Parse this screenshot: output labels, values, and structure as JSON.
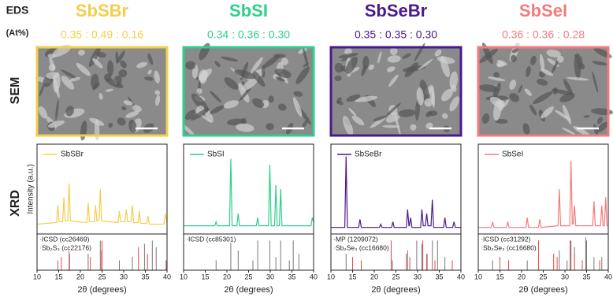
{
  "row_labels": {
    "eds": "EDS",
    "eds_unit": "(At%)",
    "sem": "SEM",
    "xrd": "XRD"
  },
  "chart_data": [
    {
      "type": "line",
      "title": "SbSBr",
      "subtitle": "0.35 : 0.49 : 0.16",
      "color": "#f2cf4b",
      "xlabel": "2θ (degrees)",
      "ylabel": "Intensity (a.u.)",
      "xlim": [
        10,
        40
      ],
      "xticks": [
        10,
        15,
        20,
        25,
        30,
        35,
        40
      ],
      "ylim": [
        0,
        1.1
      ],
      "x": [
        10,
        14.5,
        14.8,
        15.1,
        15.9,
        16.2,
        16.5,
        17.1,
        17.4,
        17.7,
        21.5,
        21.8,
        22.1,
        23.2,
        23.5,
        23.8,
        24.3,
        24.6,
        24.9,
        28.7,
        29,
        29.3,
        30.3,
        30.6,
        30.9,
        31.7,
        32,
        32.3,
        33.3,
        33.6,
        33.9,
        35.3,
        35.6,
        35.9,
        39.3,
        39.6,
        40
      ],
      "series": [
        {
          "name": "SbSBr",
          "color": "#f2cf4b",
          "values": [
            0.12,
            0.14,
            0.35,
            0.15,
            0.15,
            0.45,
            0.16,
            0.16,
            0.62,
            0.16,
            0.14,
            0.38,
            0.15,
            0.15,
            0.35,
            0.16,
            0.17,
            0.55,
            0.16,
            0.14,
            0.28,
            0.15,
            0.15,
            0.3,
            0.15,
            0.15,
            0.35,
            0.14,
            0.14,
            0.28,
            0.13,
            0.13,
            0.22,
            0.12,
            0.12,
            0.25,
            0.14
          ]
        }
      ],
      "references": [
        {
          "name": "ICSD (cc26469)",
          "color": "#777777",
          "x": [
            14.8,
            17.4,
            21.8,
            24.6,
            29,
            32,
            34.8,
            36.6,
            37.5
          ],
          "values": [
            0.3,
            0.6,
            0.5,
            0.9,
            0.3,
            0.4,
            0.8,
            0.9,
            0.7
          ]
        },
        {
          "name": "Sb₂S₃ (cc22176)",
          "color": "#e8454a",
          "x": [
            15.6,
            17.5,
            22.3,
            24.9,
            25,
            33.4,
            35.5,
            39.8
          ],
          "values": [
            0.4,
            0.5,
            0.4,
            0.6,
            0.9,
            0.7,
            0.5,
            0.3
          ]
        }
      ],
      "ref_ylim": [
        0,
        1.1
      ]
    },
    {
      "type": "line",
      "title": "SbSI",
      "subtitle": "0.34 : 0.36 : 0.30",
      "color": "#2ecf8c",
      "xlabel": "2θ (degrees)",
      "xlim": [
        10,
        40
      ],
      "xticks": [
        10,
        15,
        20,
        25,
        30,
        35,
        40
      ],
      "ylim": [
        0,
        1.1
      ],
      "x": [
        10,
        17.2,
        17.5,
        17.8,
        20.6,
        20.9,
        21.2,
        22.3,
        22.6,
        22.9,
        26.8,
        27.1,
        27.4,
        29.6,
        29.9,
        30.2,
        31,
        31.3,
        31.6,
        32.1,
        32.4,
        32.7,
        39.4,
        39.7,
        40
      ],
      "series": [
        {
          "name": "SbSI",
          "color": "#2ecf8c",
          "values": [
            0.1,
            0.1,
            0.15,
            0.1,
            0.1,
            0.92,
            0.1,
            0.1,
            0.25,
            0.1,
            0.1,
            0.2,
            0.1,
            0.1,
            0.85,
            0.1,
            0.1,
            0.6,
            0.1,
            0.1,
            0.55,
            0.1,
            0.1,
            0.2,
            0.15
          ]
        }
      ],
      "references": [
        {
          "name": "ICSD (cc85301)",
          "color": "#777777",
          "x": [
            17.5,
            20.9,
            22.6,
            26,
            27.1,
            29.9,
            31.3,
            32.4,
            34.4,
            35.3,
            36.6
          ],
          "values": [
            0.3,
            1,
            0.6,
            0.3,
            0.9,
            0.9,
            0.4,
            0.9,
            0.3,
            0.9,
            0.5
          ]
        }
      ],
      "ref_ylim": [
        0,
        1.1
      ]
    },
    {
      "type": "line",
      "title": "SbSeBr",
      "subtitle": "0.35 : 0.35 : 0.30",
      "color": "#4a1a8c",
      "xlabel": "2θ (degrees)",
      "xlim": [
        10,
        40
      ],
      "xticks": [
        10,
        15,
        20,
        25,
        30,
        35,
        40
      ],
      "ylim": [
        0,
        1.1
      ],
      "x": [
        10,
        13.2,
        13.5,
        13.8,
        16.4,
        16.7,
        17,
        21.2,
        21.5,
        21.8,
        24,
        24.3,
        24.6,
        27.4,
        27.7,
        28,
        28.1,
        28.4,
        28.7,
        30.7,
        31,
        31.3,
        31.8,
        32.1,
        32.4,
        33.1,
        33.4,
        33.7,
        36,
        36.3,
        36.6,
        38.1,
        38.4,
        38.7,
        40
      ],
      "series": [
        {
          "name": "SbSeBr",
          "color": "#4a1a8c",
          "values": [
            0.08,
            0.08,
            0.95,
            0.08,
            0.08,
            0.18,
            0.08,
            0.08,
            0.12,
            0.08,
            0.08,
            0.15,
            0.08,
            0.08,
            0.3,
            0.1,
            0.1,
            0.2,
            0.08,
            0.08,
            0.3,
            0.1,
            0.1,
            0.25,
            0.1,
            0.1,
            0.42,
            0.08,
            0.08,
            0.2,
            0.08,
            0.08,
            0.15,
            0.08,
            0.08
          ]
        }
      ],
      "references": [
        {
          "name": "MP (1209072)",
          "color": "#777777",
          "x": [
            13.5,
            24.2,
            27.7,
            29.8,
            31,
            32.1,
            33.4,
            34.6,
            36.3
          ],
          "values": [
            0.5,
            0.3,
            0.6,
            0.9,
            0.8,
            0.5,
            0.9,
            0.9,
            0.4
          ]
        },
        {
          "name": "Sb₂Se₃ (cc16680)",
          "color": "#e8454a",
          "x": [
            15,
            17,
            23.9,
            27.4,
            28.2,
            31.2,
            32.2,
            34,
            38
          ],
          "values": [
            0.4,
            0.3,
            0.9,
            0.5,
            0.4,
            0.9,
            0.5,
            0.3,
            0.3
          ]
        }
      ],
      "ref_ylim": [
        0,
        1.1
      ]
    },
    {
      "type": "line",
      "title": "SbSeI",
      "subtitle": "0.36 : 0.36 : 0.28",
      "color": "#f27c7c",
      "xlabel": "2θ (degrees)",
      "xlim": [
        10,
        40
      ],
      "xticks": [
        10,
        15,
        20,
        25,
        30,
        35,
        40
      ],
      "ylim": [
        0,
        1.1
      ],
      "x": [
        10,
        13,
        13.3,
        13.6,
        16.5,
        16.8,
        17.1,
        21,
        21.3,
        21.6,
        23.9,
        24.2,
        24.5,
        28.4,
        28.7,
        29,
        31.1,
        31.4,
        31.7,
        31.9,
        32.2,
        32.5,
        36.4,
        36.7,
        37,
        38.2,
        38.5,
        38.8,
        39.1,
        39.4,
        39.7,
        40
      ],
      "series": [
        {
          "name": "SbSeI",
          "color": "#f27c7c",
          "values": [
            0.08,
            0.08,
            0.15,
            0.08,
            0.08,
            0.15,
            0.08,
            0.08,
            0.2,
            0.08,
            0.08,
            0.18,
            0.08,
            0.1,
            0.55,
            0.1,
            0.1,
            0.9,
            0.12,
            0.12,
            0.35,
            0.1,
            0.1,
            0.4,
            0.1,
            0.1,
            0.35,
            0.1,
            0.1,
            0.45,
            0.1,
            0.1
          ]
        }
      ],
      "references": [
        {
          "name": "ICSD (cc31292)",
          "color": "#777777",
          "x": [
            13.3,
            21.3,
            28.7,
            30.5,
            31.4,
            32.2,
            34.8,
            35,
            36.7,
            38.5
          ],
          "values": [
            0.3,
            0.3,
            0.6,
            0.3,
            0.9,
            0.7,
            1,
            0.9,
            0.4,
            0.4
          ]
        },
        {
          "name": "Sb₂Se₃ (cc16680)",
          "color": "#e8454a",
          "x": [
            15,
            17,
            23.9,
            27.4,
            28.2,
            31.2,
            32.2,
            34,
            38
          ],
          "values": [
            0.4,
            0.3,
            0.9,
            0.5,
            0.4,
            0.9,
            0.5,
            0.3,
            0.3
          ]
        }
      ],
      "ref_ylim": [
        0,
        1.1
      ]
    }
  ]
}
